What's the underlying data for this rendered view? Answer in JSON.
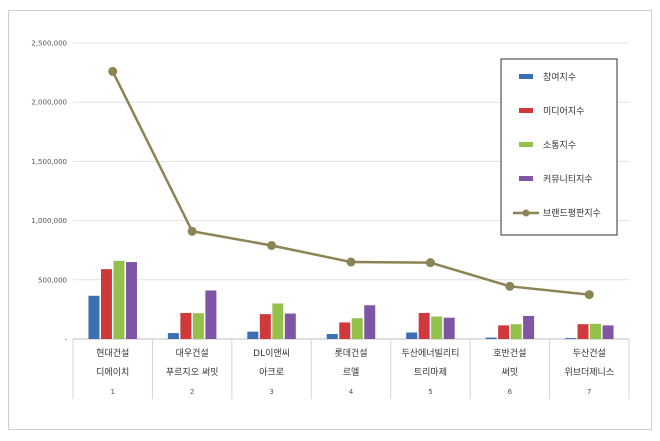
{
  "chart_data": {
    "type": "bar",
    "categories": [
      {
        "line1": "현대건설",
        "line2": "디에이치",
        "index": "1"
      },
      {
        "line1": "대우건설",
        "line2": "푸르지오 써밋",
        "index": "2"
      },
      {
        "line1": "DL이앤씨",
        "line2": "아크로",
        "index": "3"
      },
      {
        "line1": "롯데건설",
        "line2": "르엘",
        "index": "4"
      },
      {
        "line1": "두산에너빌리티",
        "line2": "트리마제",
        "index": "5"
      },
      {
        "line1": "호반건설",
        "line2": "써밋",
        "index": "6"
      },
      {
        "line1": "두산건설",
        "line2": "위브더제니스",
        "index": "7"
      }
    ],
    "series": [
      {
        "name": "참여지수",
        "color": "#3a6fb5",
        "values": [
          365000,
          50000,
          62000,
          42000,
          55000,
          12000,
          8000
        ]
      },
      {
        "name": "미디어지수",
        "color": "#d0393b",
        "values": [
          590000,
          220000,
          210000,
          140000,
          220000,
          115000,
          125000
        ]
      },
      {
        "name": "소통지수",
        "color": "#93c14a",
        "values": [
          660000,
          218000,
          300000,
          175000,
          190000,
          125000,
          128000
        ]
      },
      {
        "name": "커뮤니티지수",
        "color": "#7f56a6",
        "values": [
          650000,
          410000,
          215000,
          285000,
          180000,
          195000,
          115000
        ]
      }
    ],
    "line_series": {
      "name": "브랜드평판지수",
      "color": "#8c8454",
      "values": [
        2260000,
        910000,
        790000,
        650000,
        645000,
        445000,
        375000
      ]
    },
    "ylim": [
      0,
      2500000
    ],
    "y_ticks": [
      "2,500,000",
      "2,000,000",
      "1,500,000",
      "1,000,000",
      "500,000",
      "-"
    ],
    "grid": true,
    "legend_position": "right"
  }
}
